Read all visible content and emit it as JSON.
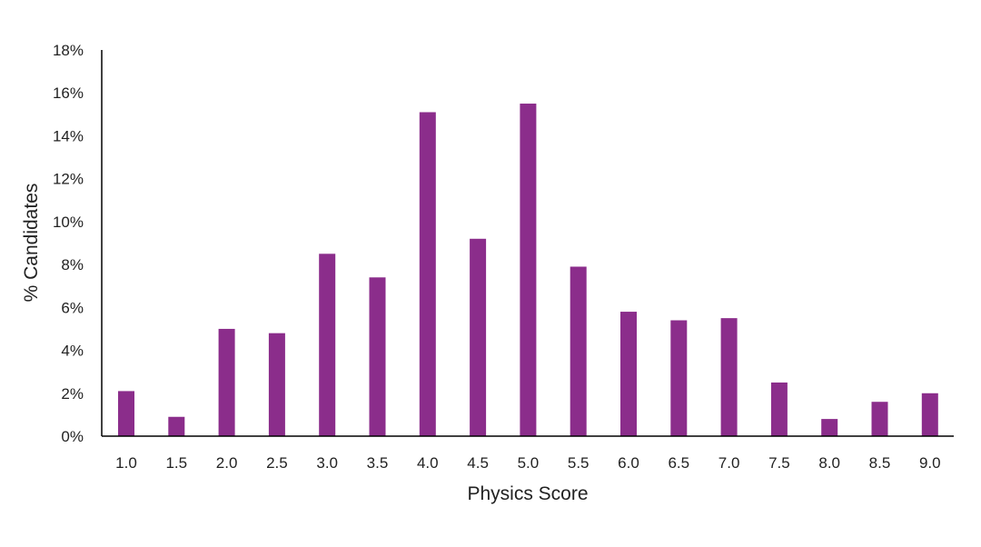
{
  "chart_data": {
    "type": "bar",
    "title": "",
    "xlabel": "Physics Score",
    "ylabel": "% Candidates",
    "categories": [
      "1.0",
      "1.5",
      "2.0",
      "2.5",
      "3.0",
      "3.5",
      "4.0",
      "4.5",
      "5.0",
      "5.5",
      "6.0",
      "6.5",
      "7.0",
      "7.5",
      "8.0",
      "8.5",
      "9.0"
    ],
    "values": [
      2.1,
      0.9,
      5.0,
      4.8,
      8.5,
      7.4,
      15.1,
      9.2,
      15.5,
      7.9,
      5.8,
      5.4,
      5.5,
      2.5,
      0.8,
      1.6,
      2.0
    ],
    "ylim": [
      0,
      18
    ],
    "yticks": [
      0,
      2,
      4,
      6,
      8,
      10,
      12,
      14,
      16,
      18
    ],
    "ytick_labels": [
      "0%",
      "2%",
      "4%",
      "6%",
      "8%",
      "10%",
      "12%",
      "14%",
      "16%",
      "18%"
    ],
    "grid": false,
    "legend": "none",
    "bar_color": "#8b2d8b"
  }
}
